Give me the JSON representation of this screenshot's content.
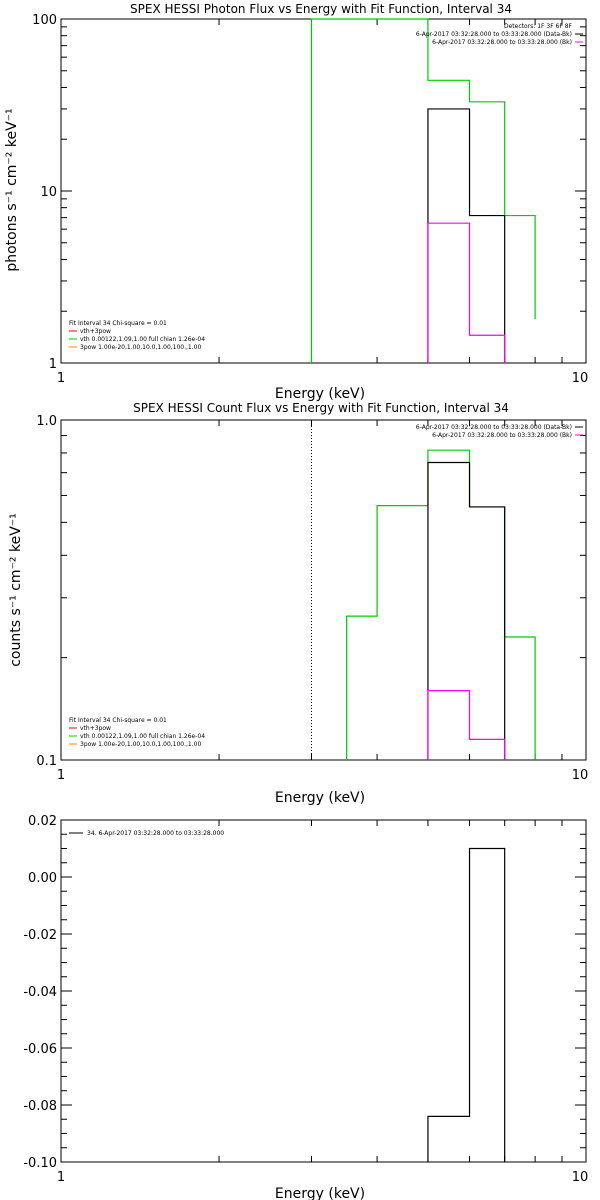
{
  "chart_data": [
    {
      "type": "line",
      "title": "SPEX HESSI Photon Flux vs Energy with Fit Function, Interval 34",
      "xlabel": "Energy (keV)",
      "ylabel": "photons s⁻¹ cm⁻² keV⁻¹",
      "xlog": true,
      "ylog": true,
      "xlim": [
        1,
        10
      ],
      "ylim": [
        1,
        100
      ],
      "xticks": [
        {
          "v": 1,
          "label": "1"
        },
        {
          "v": 10,
          "label": "10"
        }
      ],
      "yticks": [
        {
          "v": 1,
          "label": "1"
        },
        {
          "v": 10,
          "label": "10"
        },
        {
          "v": 100,
          "label": "100"
        }
      ],
      "legend_top": [
        {
          "text": "Detectors: 1F 3F 6F 8F",
          "color": null
        },
        {
          "text": "6-Apr-2017 03:32:28.000 to 03:33:28.000 (Data-Bk)",
          "color": "#000000"
        },
        {
          "text": "6-Apr-2017 03:32:28.000 to 03:33:28.000 (Bk)",
          "color": "#ff00ff"
        }
      ],
      "legend_bottom": [
        {
          "text": "Fit Interval 34   Chi-square = 0.01",
          "color": null
        },
        {
          "text": "vth+3pow",
          "color": "#ff0000"
        },
        {
          "text": "vth 0.00122,1.09,1.00  full chian 1.26e-04",
          "color": "#00cc00"
        },
        {
          "text": "3pow 1.00e-20,1.00,10.0,1.00,100.,1.00",
          "color": "#ff8800"
        }
      ],
      "vlines": [
        {
          "x": 3,
          "color": "#000000",
          "dash": ""
        },
        {
          "x": 3,
          "color": "#00cc00",
          "dash": ""
        }
      ],
      "series": [
        {
          "color": "#00cc00",
          "edges": [
            3,
            4,
            5,
            6,
            7,
            8
          ],
          "values": [
            100,
            100,
            44,
            33,
            7.2,
            1.8
          ],
          "open_end": true
        },
        {
          "color": "#000000",
          "edges": [
            5,
            6,
            7
          ],
          "values": [
            30,
            7.2
          ],
          "open_end": false
        },
        {
          "color": "#ff00ff",
          "edges": [
            5,
            6,
            7
          ],
          "values": [
            6.5,
            1.45
          ],
          "open_end": false
        }
      ]
    },
    {
      "type": "line",
      "title": "SPEX HESSI Count Flux vs Energy with Fit Function, Interval 34",
      "xlabel": "Energy (keV)",
      "ylabel": "counts s⁻¹ cm⁻² keV⁻¹",
      "xlog": true,
      "ylog": true,
      "xlim": [
        1,
        10
      ],
      "ylim": [
        0.1,
        1.0
      ],
      "xticks": [
        {
          "v": 1,
          "label": "1"
        },
        {
          "v": 10,
          "label": "10"
        }
      ],
      "yticks": [
        {
          "v": 0.1,
          "label": "0.1"
        },
        {
          "v": 1.0,
          "label": "1.0"
        }
      ],
      "legend_top": [
        {
          "text": "6-Apr-2017 03:32:28.000 to 03:33:28.000 (Data-Bk)",
          "color": "#000000"
        },
        {
          "text": "6-Apr-2017 03:32:28.000 to 03:33:28.000 (Bk)",
          "color": "#ff00ff"
        }
      ],
      "legend_bottom": [
        {
          "text": "Fit Interval 34   Chi-square = 0.01",
          "color": null
        },
        {
          "text": "vth+3pow",
          "color": "#ff0000"
        },
        {
          "text": "vth 0.00122,1.09,1.00  full chian 1.26e-04",
          "color": "#00cc00"
        },
        {
          "text": "3pow 1.00e-20,1.00,10.0,1.00,100.,1.00",
          "color": "#ff8800"
        }
      ],
      "vlines": [
        {
          "x": 3,
          "color": "#000000",
          "dash": "1,2"
        }
      ],
      "series": [
        {
          "color": "#00cc00",
          "edges": [
            3.5,
            4,
            5,
            6,
            7,
            8
          ],
          "values": [
            0.265,
            0.56,
            0.815,
            0.555,
            0.23
          ],
          "open_end": true
        },
        {
          "color": "#000000",
          "edges": [
            5,
            6,
            7
          ],
          "values": [
            0.75,
            0.555
          ],
          "open_end": false
        },
        {
          "color": "#ff00ff",
          "edges": [
            5,
            6,
            7
          ],
          "values": [
            0.16,
            0.115
          ],
          "open_end": false
        }
      ]
    },
    {
      "type": "line",
      "title": "",
      "xlabel": "Energy (keV)",
      "ylabel": "",
      "xlog": true,
      "ylog": false,
      "xlim": [
        1,
        10
      ],
      "ylim": [
        -0.1,
        0.02
      ],
      "xticks": [
        {
          "v": 1,
          "label": "1"
        },
        {
          "v": 10,
          "label": "10"
        }
      ],
      "yticks": [
        {
          "v": 0.02,
          "label": "0.02"
        },
        {
          "v": 0.0,
          "label": "0.00"
        },
        {
          "v": -0.02,
          "label": "-0.02"
        },
        {
          "v": -0.04,
          "label": "-0.04"
        },
        {
          "v": -0.06,
          "label": "-0.06"
        },
        {
          "v": -0.08,
          "label": "-0.08"
        },
        {
          "v": -0.1,
          "label": "-0.10"
        }
      ],
      "legend_top": [],
      "legend_bottom": [],
      "legend_left": [
        {
          "text": "34.  6-Apr-2017 03:32:28.000 to 03:33:28.000",
          "color": "#000000"
        }
      ],
      "vlines": [],
      "series": [
        {
          "color": "#000000",
          "edges": [
            5,
            6,
            7
          ],
          "values": [
            -0.084,
            0.01
          ],
          "open_end": false
        }
      ]
    }
  ]
}
